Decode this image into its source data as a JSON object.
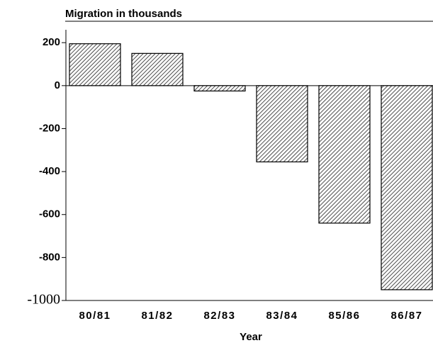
{
  "chart_data": {
    "type": "bar",
    "title": "Migration in thousands",
    "x_label": "Year",
    "categories": [
      "80/81",
      "81/82",
      "82/83",
      "83/84",
      "85/86",
      "86/87"
    ],
    "values": [
      195,
      150,
      -25,
      -355,
      -640,
      -950
    ],
    "color": "#000000",
    "ylim": [
      -1000,
      260
    ],
    "yticks": [
      200,
      0,
      -200,
      -400,
      -600,
      -800,
      -1000
    ],
    "grid": false
  }
}
